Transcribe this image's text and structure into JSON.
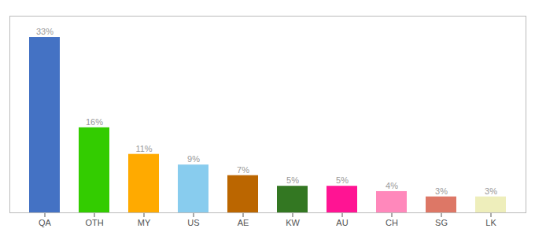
{
  "chart_data": {
    "type": "bar",
    "categories": [
      "QA",
      "OTH",
      "MY",
      "US",
      "AE",
      "KW",
      "AU",
      "CH",
      "SG",
      "LK"
    ],
    "values": [
      33,
      16,
      11,
      9,
      7,
      5,
      5,
      4,
      3,
      3
    ],
    "value_labels": [
      "33%",
      "16%",
      "11%",
      "9%",
      "7%",
      "5%",
      "5%",
      "4%",
      "3%",
      "3%"
    ],
    "colors": [
      "#4472C4",
      "#33CC00",
      "#FFAA00",
      "#88CCEE",
      "#BB6600",
      "#337722",
      "#FF1493",
      "#FF88BB",
      "#DD7766",
      "#EEEEBB"
    ],
    "ylim": [
      0,
      37
    ],
    "grid": false,
    "data_labels": true,
    "tick_labels": "x"
  }
}
